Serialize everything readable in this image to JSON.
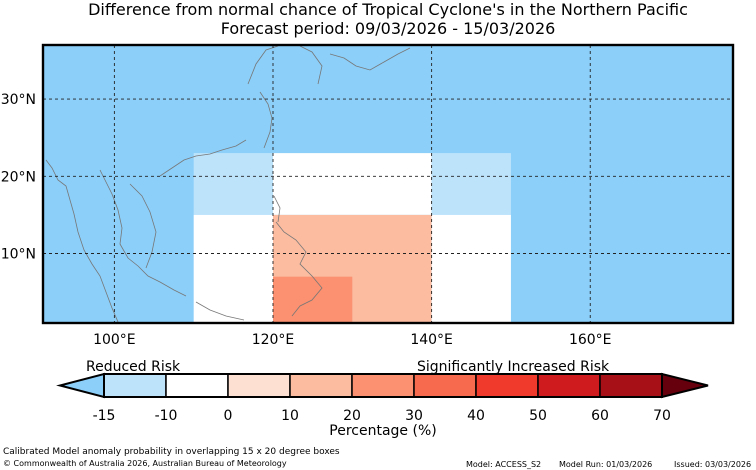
{
  "title": {
    "line1": "Difference from normal chance of Tropical Cyclone's in the Northern Pacific",
    "line2": "Forecast period: 09/03/2026 - 15/03/2026"
  },
  "map": {
    "lon_range": [
      91,
      178
    ],
    "lat_range": [
      1,
      37
    ],
    "lon_ticks": [
      100,
      120,
      140,
      160
    ],
    "lon_tick_labels": [
      "100°E",
      "120°E",
      "140°E",
      "160°E"
    ],
    "lat_ticks": [
      10,
      20,
      30
    ],
    "lat_tick_labels": [
      "10°N",
      "20°N",
      "30°N"
    ],
    "ocean_color": "#8ccff9",
    "grid": "dotted",
    "boxes": [
      {
        "lon": [
          110,
          120
        ],
        "lat": [
          15,
          23
        ],
        "color": "#bde3fb",
        "category": "-15 to -10"
      },
      {
        "lon": [
          120,
          140
        ],
        "lat": [
          15,
          23
        ],
        "color": "#ffffff",
        "category": "-10 to 0"
      },
      {
        "lon": [
          140,
          150
        ],
        "lat": [
          15,
          23
        ],
        "color": "#bde3fb",
        "category": "-15 to -10"
      },
      {
        "lon": [
          110,
          120
        ],
        "lat": [
          1,
          15
        ],
        "color": "#ffffff",
        "category": "-10 to 0"
      },
      {
        "lon": [
          120,
          140
        ],
        "lat": [
          1,
          15
        ],
        "color": "#fbbca0",
        "category": "10 to 20"
      },
      {
        "lon": [
          140,
          150
        ],
        "lat": [
          1,
          15
        ],
        "color": "#ffffff",
        "category": "-10 to 0"
      },
      {
        "lon": [
          120,
          130
        ],
        "lat": [
          1,
          7
        ],
        "color": "#fb9170",
        "category": "20 to 30"
      }
    ]
  },
  "colorbar": {
    "reduced_label": "Reduced Risk",
    "increased_label": "Significantly Increased Risk",
    "ticks": [
      "-15",
      "-10",
      "0",
      "10",
      "20",
      "30",
      "40",
      "50",
      "60",
      "70"
    ],
    "colors": [
      "#bde3fb",
      "#ffffff",
      "#fee0d3",
      "#fbbca0",
      "#fb9170",
      "#f86a4d",
      "#ef3a2c",
      "#cf1b1e",
      "#a71016"
    ],
    "under_color": "#8ccff9",
    "over_color": "#67000d",
    "xlabel": "Percentage (%)"
  },
  "footer": {
    "note": "Calibrated Model anomaly probability in overlapping 15 x 20 degree boxes",
    "copyright": "© Commonwealth of Australia 2026, Australian Bureau of Meteorology",
    "model": "Model: ACCESS_S2",
    "model_run": "Model Run: 01/03/2026",
    "issued": "Issued: 03/03/2026"
  }
}
